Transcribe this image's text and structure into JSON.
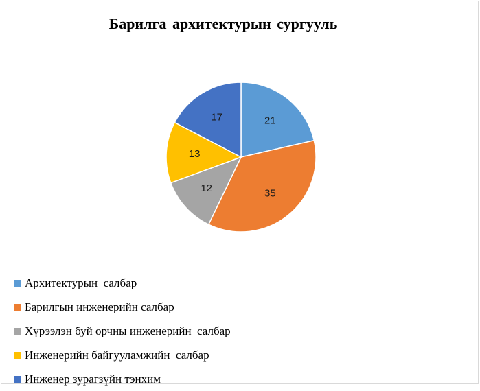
{
  "chart_data": {
    "type": "pie",
    "title": "Барилга архитектурын  сургууль",
    "categories": [
      "Архитектурын  салбар",
      "Барилгын инженерийн салбар",
      "Хүрээлэн буй орчны инженерийн  салбар",
      "Инженерийн байгууламжийн  салбар",
      "Инженер зурагзүйн тэнхим"
    ],
    "values": [
      21,
      35,
      12,
      13,
      17
    ],
    "colors": [
      "#5B9BD5",
      "#ED7D31",
      "#A5A5A5",
      "#FFC000",
      "#4472C4"
    ],
    "legend_position": "bottom-left",
    "start_angle_deg": 0,
    "direction": "clockwise"
  }
}
